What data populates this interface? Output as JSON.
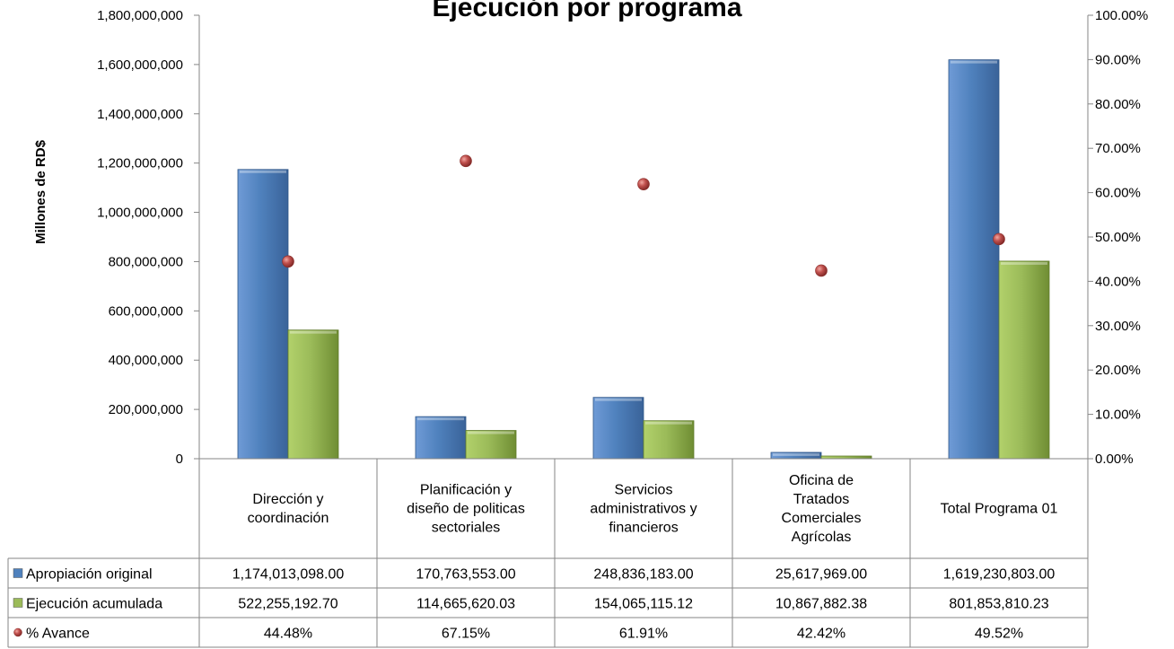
{
  "chart_data": {
    "type": "bar",
    "title": "Ejecución por programa",
    "ylabel": "Millones de RD$",
    "ylim": [
      0,
      1800000000
    ],
    "y_ticks": [
      "0",
      "200,000,000",
      "400,000,000",
      "600,000,000",
      "800,000,000",
      "1,000,000,000",
      "1,200,000,000",
      "1,400,000,000",
      "1,600,000,000",
      "1,800,000,000"
    ],
    "y2lim": [
      0,
      1
    ],
    "y2_ticks": [
      "0.00%",
      "10.00%",
      "20.00%",
      "30.00%",
      "40.00%",
      "50.00%",
      "60.00%",
      "70.00%",
      "80.00%",
      "90.00%",
      "100.00%"
    ],
    "categories": [
      [
        "Dirección y",
        "coordinación"
      ],
      [
        "Planificación y",
        "diseño de politicas",
        "sectoriales"
      ],
      [
        "Servicios",
        "administrativos y",
        "financieros"
      ],
      [
        "Oficina de",
        "Tratados",
        "Comerciales",
        "Agrícolas"
      ],
      [
        "Total Programa 01"
      ]
    ],
    "series": [
      {
        "name": "Apropiación original",
        "kind": "bar",
        "axis": "left",
        "color": "#4F81BD",
        "values": [
          1174013098.0,
          170763553.0,
          248836183.0,
          25617969.0,
          1619230803.0
        ],
        "labels": [
          "1,174,013,098.00",
          "170,763,553.00",
          "248,836,183.00",
          "25,617,969.00",
          "1,619,230,803.00"
        ]
      },
      {
        "name": "Ejecución acumulada",
        "kind": "bar",
        "axis": "left",
        "color": "#9BBB59",
        "values": [
          522255192.7,
          114665620.03,
          154065115.12,
          10867882.38,
          801853810.23
        ],
        "labels": [
          "522,255,192.70",
          "114,665,620.03",
          "154,065,115.12",
          "10,867,882.38",
          "801,853,810.23"
        ]
      },
      {
        "name": "% Avance",
        "kind": "marker",
        "axis": "right",
        "color": "#C0504D",
        "values": [
          0.4448,
          0.6715,
          0.6191,
          0.4242,
          0.4952
        ],
        "labels": [
          "44.48%",
          "67.15%",
          "61.91%",
          "42.42%",
          "49.52%"
        ]
      }
    ],
    "data_table": true,
    "legend": "data-table"
  }
}
